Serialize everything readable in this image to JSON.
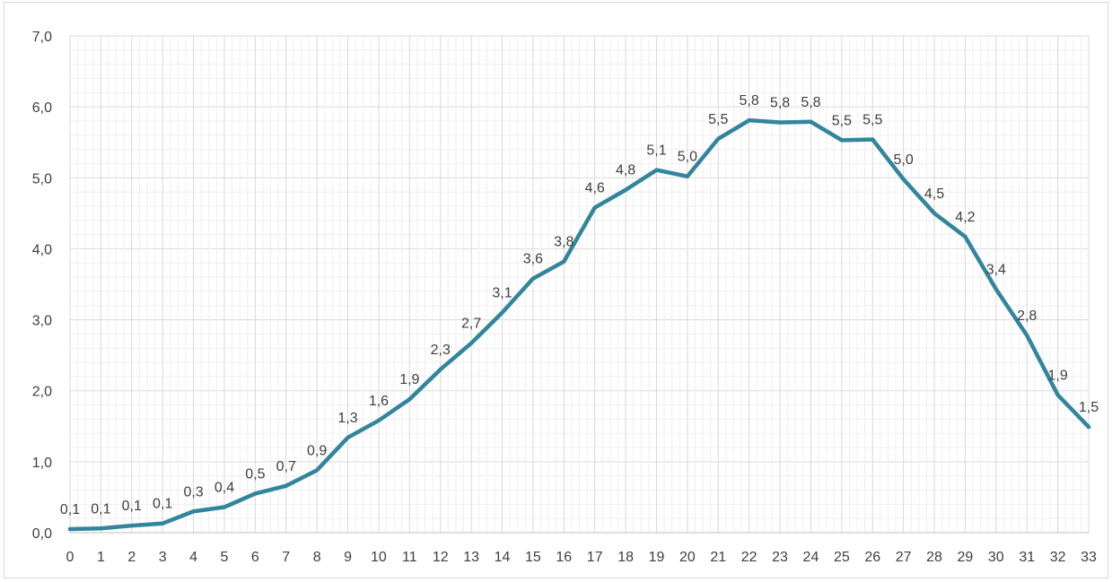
{
  "chart_data": {
    "type": "line",
    "title": "",
    "xlabel": "",
    "ylabel": "",
    "x": [
      0,
      1,
      2,
      3,
      4,
      5,
      6,
      7,
      8,
      9,
      10,
      11,
      12,
      13,
      14,
      15,
      16,
      17,
      18,
      19,
      20,
      21,
      22,
      23,
      24,
      25,
      26,
      27,
      28,
      29,
      30,
      31,
      32,
      33
    ],
    "x_tick_labels": [
      "0",
      "1",
      "2",
      "3",
      "4",
      "5",
      "6",
      "7",
      "8",
      "9",
      "10",
      "11",
      "12",
      "13",
      "14",
      "15",
      "16",
      "17",
      "18",
      "19",
      "20",
      "21",
      "22",
      "23",
      "24",
      "25",
      "26",
      "27",
      "28",
      "29",
      "30",
      "31",
      "32",
      "33"
    ],
    "series": [
      {
        "values": [
          0.05,
          0.06,
          0.1,
          0.13,
          0.3,
          0.36,
          0.55,
          0.66,
          0.88,
          1.34,
          1.58,
          1.88,
          2.3,
          2.67,
          3.1,
          3.58,
          3.82,
          4.58,
          4.83,
          5.11,
          5.02,
          5.55,
          5.81,
          5.78,
          5.79,
          5.53,
          5.54,
          4.98,
          4.5,
          4.17,
          3.43,
          2.78,
          1.94,
          1.49
        ],
        "data_labels": [
          "0,1",
          "0,1",
          "0,1",
          "0,1",
          "0,3",
          "0,4",
          "0,5",
          "0,7",
          "0,9",
          "1,3",
          "1,6",
          "1,9",
          "2,3",
          "2,7",
          "3,1",
          "3,6",
          "3,8",
          "4,6",
          "4,8",
          "5,1",
          "5,0",
          "5,5",
          "5,8",
          "5,8",
          "5,8",
          "5,5",
          "5,5",
          "5,0",
          "4,5",
          "4,2",
          "3,4",
          "2,8",
          "1,9",
          "1,5"
        ],
        "color": "#31859c"
      }
    ],
    "ylim": [
      0,
      7
    ],
    "y_ticks": [
      0,
      1,
      2,
      3,
      4,
      5,
      6,
      7
    ],
    "y_tick_labels": [
      "0,0",
      "1,0",
      "2,0",
      "3,0",
      "4,0",
      "5,0",
      "6,0",
      "7,0"
    ],
    "grid": "major-and-minor",
    "legend": "none"
  }
}
